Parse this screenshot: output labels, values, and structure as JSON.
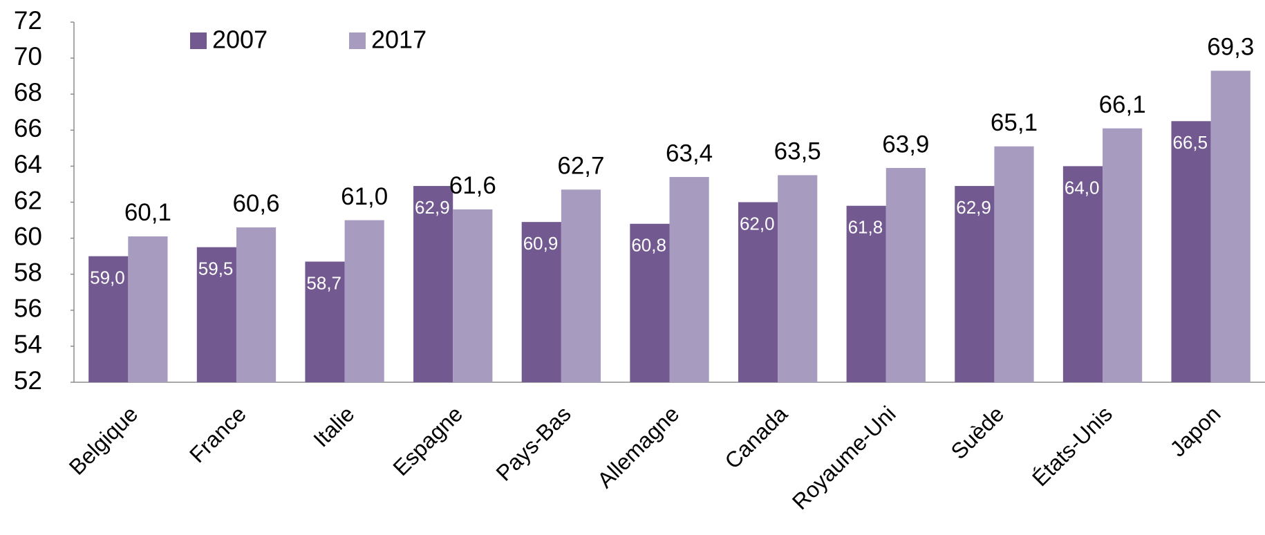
{
  "chart_data": {
    "type": "bar",
    "categories": [
      "Belgique",
      "France",
      "Italie",
      "Espagne",
      "Pays-Bas",
      "Allemagne",
      "Canada",
      "Royaume-Uni",
      "Suède",
      "États-Unis",
      "Japon"
    ],
    "series": [
      {
        "name": "2007",
        "color": "#725a91",
        "values": [
          59.0,
          59.5,
          58.7,
          62.9,
          60.9,
          60.8,
          62.0,
          61.8,
          62.9,
          64.0,
          66.5
        ],
        "value_labels": [
          "59,0",
          "59,5",
          "58,7",
          "62,9",
          "60,9",
          "60,8",
          "62,0",
          "61,8",
          "62,9",
          "64,0",
          "66,5"
        ]
      },
      {
        "name": "2017",
        "color": "#a89bc0",
        "values": [
          60.1,
          60.6,
          61.0,
          61.6,
          62.7,
          63.4,
          63.5,
          63.9,
          65.1,
          66.1,
          69.3
        ],
        "value_labels": [
          "60,1",
          "60,6",
          "61,0",
          "61,6",
          "62,7",
          "63,4",
          "63,5",
          "63,9",
          "65,1",
          "66,1",
          "69,3"
        ]
      }
    ],
    "ylim": [
      52,
      72
    ],
    "yticks": [
      52,
      54,
      56,
      58,
      60,
      62,
      64,
      66,
      68,
      70,
      72
    ],
    "legend": "top-left",
    "grid": false
  }
}
